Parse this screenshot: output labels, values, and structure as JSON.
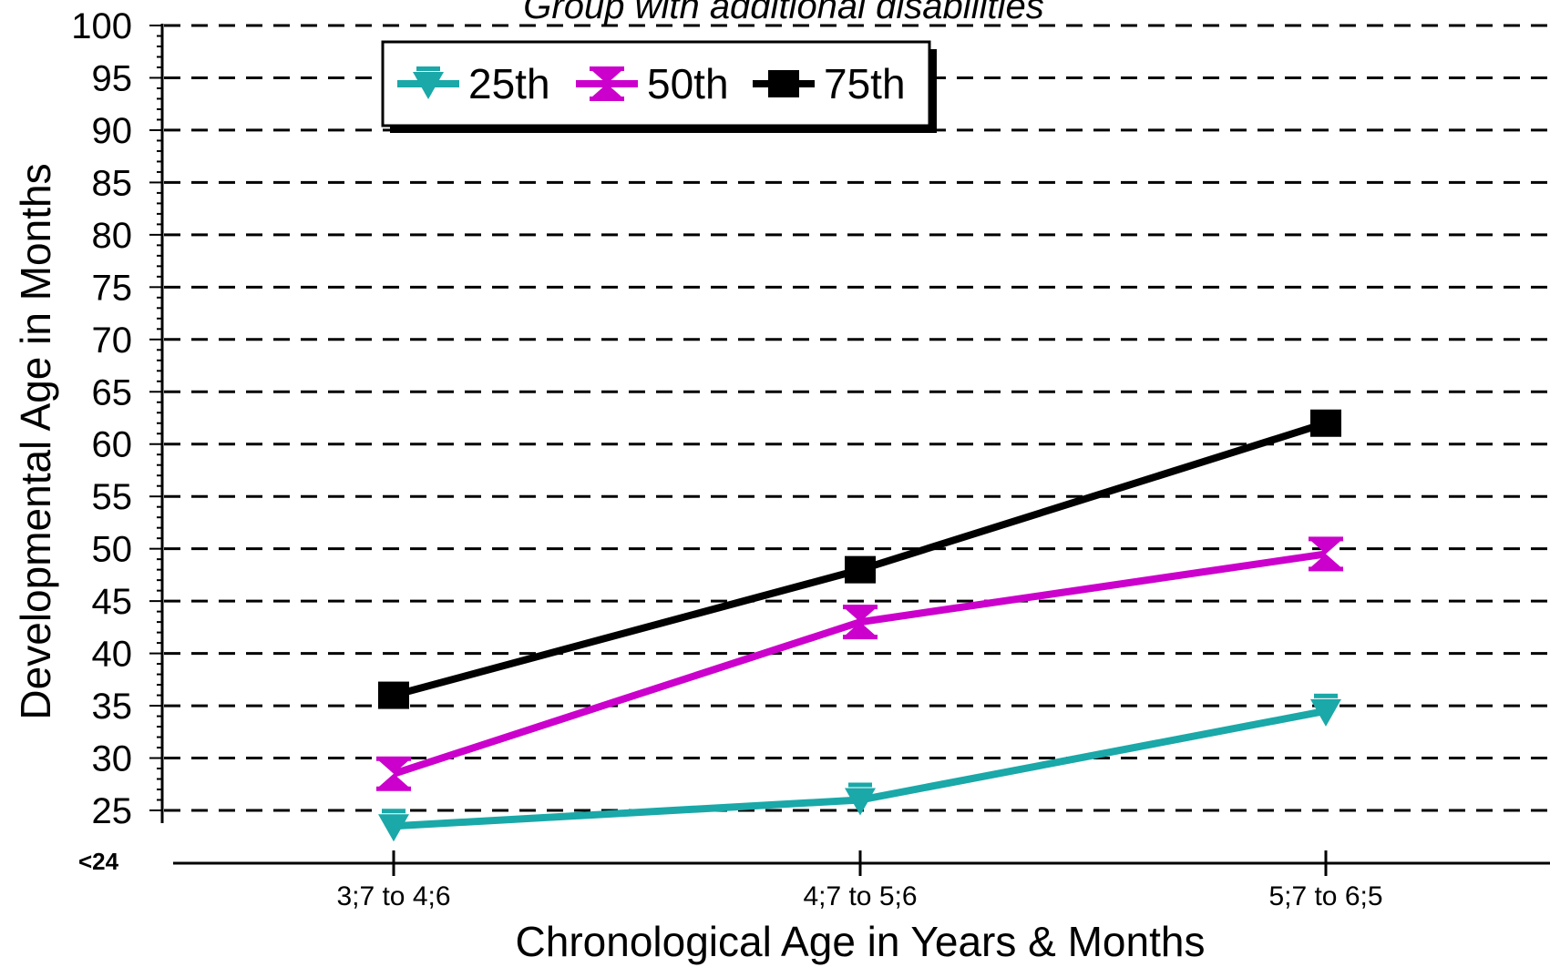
{
  "chart_data": {
    "type": "line",
    "title": "Group with additional disabilities",
    "xlabel": "Chronological Age in Years & Months",
    "ylabel": "Developmental Age in Months",
    "categories": [
      "3;7 to 4;6",
      "4;7 to 5;6",
      "5;7 to 6;5"
    ],
    "ylim": [
      20,
      100
    ],
    "yticks": [
      25,
      30,
      35,
      40,
      45,
      50,
      55,
      60,
      65,
      70,
      75,
      80,
      85,
      90,
      95,
      100
    ],
    "y_low_label": "<24",
    "grid": true,
    "legend_position": "top-left",
    "series": [
      {
        "name": "25th",
        "values": [
          23.5,
          26,
          34.5
        ],
        "color": "#1aa8a8",
        "marker": "triangle-down"
      },
      {
        "name": "50th",
        "values": [
          28.5,
          43,
          49.5
        ],
        "color": "#cc00cc",
        "marker": "hourglass"
      },
      {
        "name": "75th",
        "values": [
          36,
          48,
          62
        ],
        "color": "#000000",
        "marker": "square"
      }
    ]
  }
}
